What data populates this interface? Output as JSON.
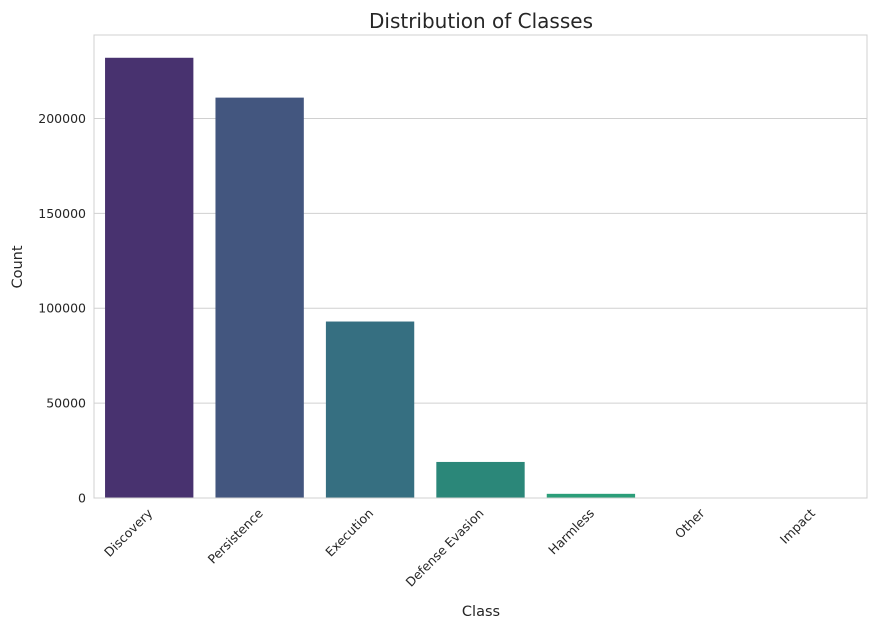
{
  "chart_data": {
    "type": "bar",
    "title": "Distribution of Classes",
    "xlabel": "Class",
    "ylabel": "Count",
    "categories": [
      "Discovery",
      "Persistence",
      "Execution",
      "Defense Evasion",
      "Harmless",
      "Other",
      "Impact"
    ],
    "values": [
      232000,
      211000,
      93000,
      19000,
      2200,
      250,
      120
    ],
    "colors": [
      "#48326f",
      "#43567f",
      "#366f81",
      "#2b8779",
      "#2b9e79",
      "#4ab574",
      "#6ccd5c"
    ],
    "ylim": [
      0,
      244000
    ],
    "yticks": [
      0,
      50000,
      100000,
      150000,
      200000
    ],
    "ytick_labels": [
      "0",
      "50000",
      "100000",
      "150000",
      "200000"
    ],
    "grid": "y",
    "legend": "none"
  }
}
